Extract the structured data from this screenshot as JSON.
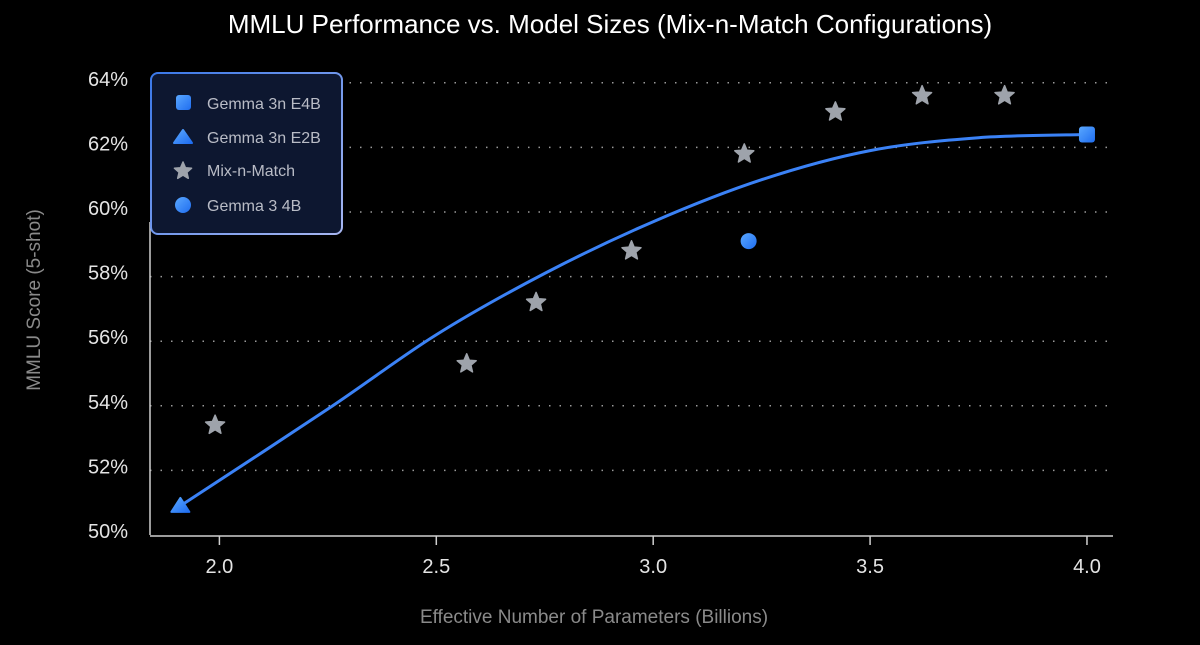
{
  "chart_data": {
    "type": "scatter",
    "title": "MMLU Performance vs. Model Sizes (Mix-n-Match Configurations)",
    "xlabel": "Effective Number of Parameters (Billions)",
    "ylabel": "MMLU  Score (5-shot)",
    "xlim": [
      1.84,
      4.06
    ],
    "ylim": [
      50,
      64.5
    ],
    "xticks": [
      2.0,
      2.5,
      3.0,
      3.5,
      4.0
    ],
    "xtick_labels": [
      "2.0",
      "2.5",
      "3.0",
      "3.5",
      "4.0"
    ],
    "yticks": [
      50,
      52,
      54,
      56,
      58,
      60,
      62,
      64
    ],
    "ytick_labels": [
      "50%",
      "52%",
      "54%",
      "56%",
      "58%",
      "60%",
      "62%",
      "64%"
    ],
    "grid": "horizontal dotted",
    "legend_position": "top-left",
    "series": [
      {
        "name": "Gemma 3n E4B",
        "marker": "square",
        "color": "#3d8bff",
        "points": [
          [
            4.0,
            62.4
          ]
        ]
      },
      {
        "name": "Gemma 3n E2B",
        "marker": "triangle",
        "color": "#3d8bff",
        "points": [
          [
            1.91,
            50.9
          ]
        ]
      },
      {
        "name": "Mix-n-Match",
        "marker": "star",
        "color": "#9ea3ab",
        "points": [
          [
            1.99,
            53.4
          ],
          [
            2.57,
            55.3
          ],
          [
            2.73,
            57.2
          ],
          [
            2.95,
            58.8
          ],
          [
            3.21,
            61.8
          ],
          [
            3.42,
            63.1
          ],
          [
            3.62,
            63.6
          ],
          [
            3.81,
            63.6
          ]
        ]
      },
      {
        "name": "Gemma 3 4B",
        "marker": "circle",
        "color": "#3d8bff",
        "points": [
          [
            3.22,
            59.1
          ]
        ]
      }
    ],
    "trend_curve": {
      "color": "#3b82f6",
      "points": [
        [
          1.91,
          50.9
        ],
        [
          2.25,
          53.9
        ],
        [
          2.5,
          56.2
        ],
        [
          2.75,
          58.1
        ],
        [
          3.0,
          59.7
        ],
        [
          3.25,
          61.0
        ],
        [
          3.5,
          61.9
        ],
        [
          3.75,
          62.3
        ],
        [
          4.0,
          62.4
        ]
      ]
    }
  }
}
